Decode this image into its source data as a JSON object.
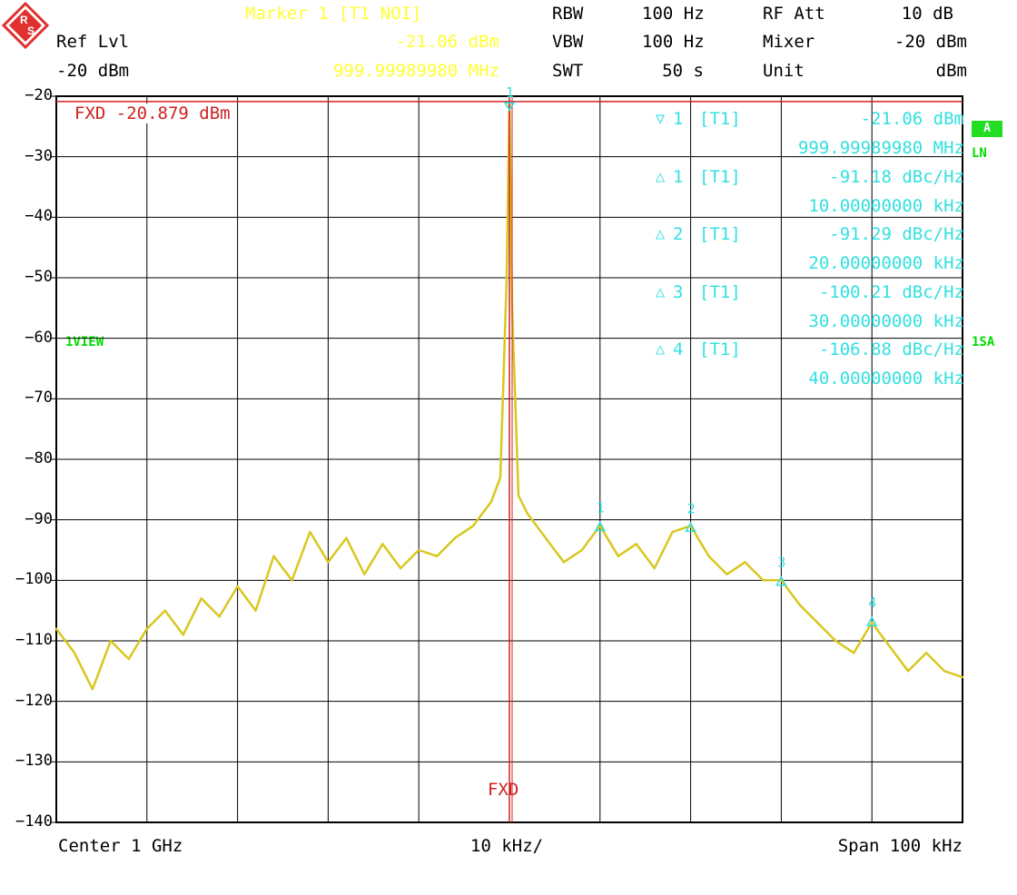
{
  "header": {
    "marker_title": "Marker 1 [T1 NOI]",
    "marker_level": "-21.06 dBm",
    "marker_freq": "999.99989980 MHz",
    "ref_lvl_label": "Ref Lvl",
    "ref_lvl_value": "-20 dBm",
    "rbw_label": "RBW",
    "rbw_value": "100 Hz",
    "vbw_label": "VBW",
    "vbw_value": "100 Hz",
    "swt_label": "SWT",
    "swt_value": "50 s",
    "rfatt_label": "RF Att",
    "rfatt_value": "10 dB",
    "mixer_label": "Mixer",
    "mixer_value": "-20 dBm",
    "unit_label": "Unit",
    "unit_value": "dBm"
  },
  "side": {
    "badge_a": "A",
    "ln": "LN",
    "view": "1VIEW",
    "sa": "1SA"
  },
  "fxd_line": "FXD -20.879 dBm",
  "fxd_marker": "FXD",
  "markers": [
    {
      "symbol": "▽",
      "num": "1",
      "trace": "[T1]",
      "value": "-21.06 dBm",
      "freq": "999.99989980 MHz"
    },
    {
      "symbol": "△",
      "num": "1",
      "trace": "[T1]",
      "value": "-91.18 dBc/Hz",
      "freq": "10.00000000 kHz"
    },
    {
      "symbol": "△",
      "num": "2",
      "trace": "[T1]",
      "value": "-91.29 dBc/Hz",
      "freq": "20.00000000 kHz"
    },
    {
      "symbol": "△",
      "num": "3",
      "trace": "[T1]",
      "value": "-100.21 dBc/Hz",
      "freq": "30.00000000 kHz"
    },
    {
      "symbol": "△",
      "num": "4",
      "trace": "[T1]",
      "value": "-106.88 dBc/Hz",
      "freq": "40.00000000 kHz"
    }
  ],
  "footer": {
    "center": "Center 1 GHz",
    "div": "10 kHz/",
    "span": "Span 100 kHz"
  },
  "colors": {
    "trace": "#d8c820",
    "grid": "#000000",
    "marker": "#33e0e0",
    "fxd": "#d02020",
    "badge": "#22dd22"
  },
  "chart_data": {
    "type": "line",
    "title": "",
    "xlabel": "",
    "ylabel": "",
    "x_unit": "kHz offset from 1 GHz",
    "xlim": [
      -50,
      50
    ],
    "ylim": [
      -140,
      -20
    ],
    "yticks": [
      -20,
      -30,
      -40,
      -50,
      -60,
      -70,
      -80,
      -90,
      -100,
      -110,
      -120,
      -130,
      -140
    ],
    "grid": true,
    "fxd_level": -20.879,
    "series": [
      {
        "x": [
          -50,
          -48,
          -46,
          -44,
          -42,
          -40,
          -38,
          -36,
          -34,
          -32,
          -30,
          -28,
          -26,
          -24,
          -22,
          -20,
          -18,
          -16,
          -14,
          -12,
          -10,
          -8,
          -6,
          -4,
          -2,
          -1,
          -0.3,
          0,
          0.3,
          1,
          2,
          4,
          6,
          8,
          10,
          12,
          14,
          16,
          18,
          20,
          22,
          24,
          26,
          28,
          30,
          32,
          34,
          36,
          38,
          40,
          42,
          44,
          46,
          48,
          50
        ],
        "y": [
          -108,
          -112,
          -118,
          -110,
          -113,
          -108,
          -105,
          -109,
          -103,
          -106,
          -101,
          -105,
          -96,
          -100,
          -92,
          -97,
          -93,
          -99,
          -94,
          -98,
          -95,
          -96,
          -93,
          -91,
          -87,
          -83,
          -50,
          -21,
          -55,
          -86,
          -89,
          -93,
          -97,
          -95,
          -91,
          -96,
          -94,
          -98,
          -92,
          -91,
          -96,
          -99,
          -97,
          -100,
          -100,
          -104,
          -107,
          -110,
          -112,
          -107,
          -111,
          -115,
          -112,
          -115,
          -116
        ]
      }
    ],
    "markers": [
      {
        "id": "1",
        "x": 0,
        "y": -21.06
      },
      {
        "id": "D1",
        "x": 10,
        "y": -91.18
      },
      {
        "id": "D2",
        "x": 20,
        "y": -91.29
      },
      {
        "id": "D3",
        "x": 30,
        "y": -100.21
      },
      {
        "id": "D4",
        "x": 40,
        "y": -106.88
      }
    ]
  }
}
